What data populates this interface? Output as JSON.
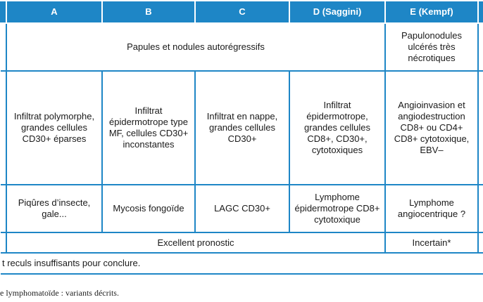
{
  "table": {
    "headers": [
      "A",
      "B",
      "C",
      "D (Saggini)",
      "E (Kempf)"
    ],
    "row_clinique": {
      "a_to_d": "Papules et nodules autorégressifs",
      "e": "Papulonodules ulcérés très nécrotiques"
    },
    "row_histologie": [
      "Infiltrat polymorphe, grandes cellules CD30+ éparses",
      "Infiltrat épidermotrope type MF, cellules CD30+ inconstantes",
      "Infiltrat en nappe, grandes cellules CD30+",
      "Infiltrat épidermotrope, grandes cellules CD8+, CD30+, cytotoxiques",
      "Angioinvasion et angiodestruction CD8+ ou CD4+ CD8+ cytotoxique, EBV–"
    ],
    "row_diagnostic": [
      "Piqûres d’insecte, gale...",
      "Mycosis fongoïde",
      "LAGC CD30+",
      "Lymphome épidermotrope CD8+ cytotoxique",
      "Lymphome angiocentrique ?"
    ],
    "row_pronostic": {
      "a_to_d": "Excellent pronostic",
      "e": "Incertain*"
    },
    "footnote": "t reculs insuffisants pour conclure."
  },
  "caption": "e lymphomatoïde : variants décrits.",
  "colors": {
    "accent": "#1e86c6",
    "header_text": "#ffffff"
  }
}
